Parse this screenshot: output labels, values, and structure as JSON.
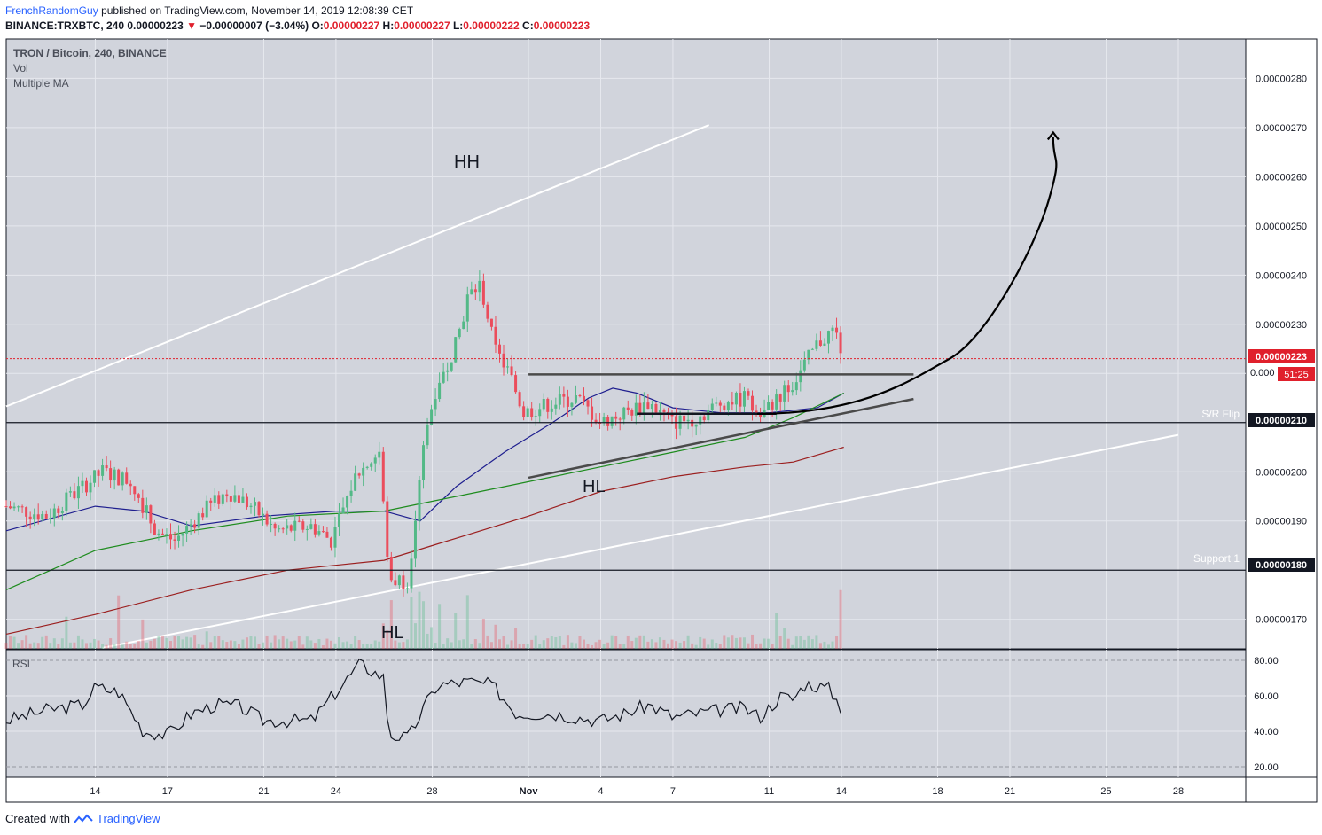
{
  "header": {
    "author": "FrenchRandomGuy",
    "published_text": "published on TradingView.com, November 14, 2019 12:08:39 CET",
    "symbol": "BINANCE:TRXBTC, 240",
    "last": "0.00000223",
    "change": "−0.00000007 (−3.04%)",
    "o_label": "O:",
    "o_value": "0.00000227",
    "h_label": "H:",
    "h_value": "0.00000227",
    "l_label": "L:",
    "l_value": "0.00000222",
    "c_label": "C:",
    "c_value": "0.00000223"
  },
  "legend": {
    "title": "TRON / Bitcoin, 240, BINANCE",
    "vol": "Vol",
    "ma": "Multiple MA"
  },
  "footer": {
    "created_with": "Created with",
    "brand": "TradingView"
  },
  "colors": {
    "up": "#53b987",
    "down": "#eb4d5c",
    "bg": "#d1d4dc",
    "grid": "#e6e8ee",
    "ma1": "#1f1f8f",
    "ma2": "#1e8c1e",
    "ma3": "#9b1f1f",
    "channel": "#ffffff",
    "curve": "#000000",
    "trend": "#555555",
    "price_line": "#e0202c"
  },
  "chart_data": {
    "type": "candlestick",
    "title": "TRON / Bitcoin, 240, BINANCE",
    "ylim": [
      1.64e-06,
      2.88e-06
    ],
    "y_ticks": [
      2.8e-06,
      2.7e-06,
      2.6e-06,
      2.5e-06,
      2.4e-06,
      2.3e-06,
      2.2e-06,
      2.1e-06,
      2e-06,
      1.9e-06,
      1.8e-06,
      1.7e-06
    ],
    "y_tick_labels": [
      "0.00000280",
      "0.00000270",
      "0.00000260",
      "0.00000250",
      "0.00000240",
      "0.00000230",
      "0.00000220",
      "0.00000210",
      "0.00000200",
      "0.00000190",
      "0.00000180",
      "0.00000170"
    ],
    "x_days": [
      14,
      17,
      21,
      24,
      28,
      32,
      35,
      38,
      42,
      45,
      49,
      52,
      56,
      59
    ],
    "x_labels": [
      "14",
      "17",
      "21",
      "24",
      "28",
      "Nov",
      "4",
      "7",
      "11",
      "14",
      "18",
      "21",
      "25",
      "28"
    ],
    "xlim": [
      10.3,
      61.8
    ],
    "last_price": 2.23e-06,
    "last_price_label": "0.00000223",
    "countdown_label": "51:25",
    "truncated_label": "0.000",
    "levels": [
      {
        "name": "S/R Flip",
        "value": 2.1e-06,
        "label": "0.00000210"
      },
      {
        "name": "Support 1",
        "value": 1.8e-06,
        "label": "0.00000180"
      }
    ],
    "annotations": [
      "HH",
      "HL",
      "HL"
    ],
    "ohlc_keypoints": [
      {
        "day": 10.3,
        "close": 1.93e-06
      },
      {
        "day": 12.0,
        "close": 1.91e-06
      },
      {
        "day": 13.5,
        "close": 1.97e-06
      },
      {
        "day": 14.3,
        "close": 2e-06
      },
      {
        "day": 15.5,
        "close": 1.98e-06
      },
      {
        "day": 16.5,
        "close": 1.88e-06
      },
      {
        "day": 17.3,
        "close": 1.86e-06
      },
      {
        "day": 18.5,
        "close": 1.92e-06
      },
      {
        "day": 19.5,
        "close": 1.96e-06
      },
      {
        "day": 20.5,
        "close": 1.93e-06
      },
      {
        "day": 21.5,
        "close": 1.88e-06
      },
      {
        "day": 23.0,
        "close": 1.89e-06
      },
      {
        "day": 23.8,
        "close": 1.86e-06
      },
      {
        "day": 24.8,
        "close": 1.99e-06
      },
      {
        "day": 25.8,
        "close": 2.04e-06
      },
      {
        "day": 26.2,
        "close": 1.78e-06
      },
      {
        "day": 27.0,
        "close": 1.78e-06
      },
      {
        "day": 27.6,
        "close": 2.05e-06
      },
      {
        "day": 28.2,
        "close": 2.18e-06
      },
      {
        "day": 29.0,
        "close": 2.26e-06
      },
      {
        "day": 29.5,
        "close": 2.36e-06
      },
      {
        "day": 30.0,
        "close": 2.38e-06
      },
      {
        "day": 30.6,
        "close": 2.25e-06
      },
      {
        "day": 31.2,
        "close": 2.2e-06
      },
      {
        "day": 31.8,
        "close": 2.12e-06
      },
      {
        "day": 33.0,
        "close": 2.14e-06
      },
      {
        "day": 34.0,
        "close": 2.15e-06
      },
      {
        "day": 35.0,
        "close": 2.1e-06
      },
      {
        "day": 36.0,
        "close": 2.12e-06
      },
      {
        "day": 37.0,
        "close": 2.14e-06
      },
      {
        "day": 38.0,
        "close": 2.1e-06
      },
      {
        "day": 39.0,
        "close": 2.11e-06
      },
      {
        "day": 40.0,
        "close": 2.14e-06
      },
      {
        "day": 41.0,
        "close": 2.15e-06
      },
      {
        "day": 41.6,
        "close": 2.11e-06
      },
      {
        "day": 42.5,
        "close": 2.16e-06
      },
      {
        "day": 43.0,
        "close": 2.18e-06
      },
      {
        "day": 43.5,
        "close": 2.22e-06
      },
      {
        "day": 44.0,
        "close": 2.26e-06
      },
      {
        "day": 44.7,
        "close": 2.29e-06
      },
      {
        "day": 45.1,
        "close": 2.23e-06
      }
    ],
    "series": [
      {
        "name": "MA short",
        "values_at_days": [
          [
            10.3,
            1.88e-06
          ],
          [
            14,
            1.93e-06
          ],
          [
            16,
            1.92e-06
          ],
          [
            18,
            1.89e-06
          ],
          [
            21,
            1.91e-06
          ],
          [
            24,
            1.92e-06
          ],
          [
            26,
            1.92e-06
          ],
          [
            27.5,
            1.9e-06
          ],
          [
            29,
            1.97e-06
          ],
          [
            31,
            2.04e-06
          ],
          [
            33,
            2.1e-06
          ],
          [
            34.5,
            2.15e-06
          ],
          [
            35.5,
            2.17e-06
          ],
          [
            36.5,
            2.16e-06
          ],
          [
            38,
            2.13e-06
          ],
          [
            40,
            2.12e-06
          ],
          [
            42,
            2.12e-06
          ],
          [
            44,
            2.13e-06
          ],
          [
            45.1,
            2.16e-06
          ]
        ]
      },
      {
        "name": "MA mid",
        "values_at_days": [
          [
            10.3,
            1.76e-06
          ],
          [
            14,
            1.84e-06
          ],
          [
            18,
            1.88e-06
          ],
          [
            22,
            1.91e-06
          ],
          [
            26,
            1.92e-06
          ],
          [
            28,
            1.94e-06
          ],
          [
            30,
            1.96e-06
          ],
          [
            32,
            1.98e-06
          ],
          [
            35,
            2.01e-06
          ],
          [
            38,
            2.04e-06
          ],
          [
            41,
            2.07e-06
          ],
          [
            43,
            2.11e-06
          ],
          [
            45.1,
            2.16e-06
          ]
        ]
      },
      {
        "name": "MA long",
        "values_at_days": [
          [
            10.3,
            1.67e-06
          ],
          [
            14,
            1.71e-06
          ],
          [
            18,
            1.76e-06
          ],
          [
            22,
            1.8e-06
          ],
          [
            26,
            1.82e-06
          ],
          [
            28,
            1.85e-06
          ],
          [
            32,
            1.91e-06
          ],
          [
            35,
            1.96e-06
          ],
          [
            38,
            1.99e-06
          ],
          [
            41,
            2.01e-06
          ],
          [
            43,
            2.02e-06
          ],
          [
            45.1,
            2.05e-06
          ]
        ]
      },
      {
        "name": "RSI",
        "values_at_days": [
          [
            10.3,
            46
          ],
          [
            12,
            52
          ],
          [
            13.5,
            55
          ],
          [
            14,
            65
          ],
          [
            15,
            62
          ],
          [
            16,
            40
          ],
          [
            17,
            38
          ],
          [
            18,
            50
          ],
          [
            19,
            55
          ],
          [
            20,
            54
          ],
          [
            21,
            46
          ],
          [
            23,
            46
          ],
          [
            24,
            62
          ],
          [
            25,
            78
          ],
          [
            26,
            70
          ],
          [
            26.2,
            38
          ],
          [
            27,
            36
          ],
          [
            27.6,
            52
          ],
          [
            28.2,
            66
          ],
          [
            29.5,
            68
          ],
          [
            30.5,
            66
          ],
          [
            31.5,
            50
          ],
          [
            33,
            50
          ],
          [
            35,
            46
          ],
          [
            36,
            50
          ],
          [
            37,
            55
          ],
          [
            38,
            48
          ],
          [
            40,
            52
          ],
          [
            41,
            53
          ],
          [
            41.6,
            48
          ],
          [
            42.5,
            60
          ],
          [
            43,
            58
          ],
          [
            43.5,
            67
          ],
          [
            44.5,
            64
          ],
          [
            45.1,
            51
          ]
        ]
      }
    ],
    "rsi": {
      "label": "RSI",
      "ylim": [
        14,
        86
      ],
      "ticks": [
        80,
        60,
        40,
        20
      ],
      "tick_labels": [
        "80.00",
        "60.00",
        "40.00",
        "20.00"
      ]
    }
  }
}
